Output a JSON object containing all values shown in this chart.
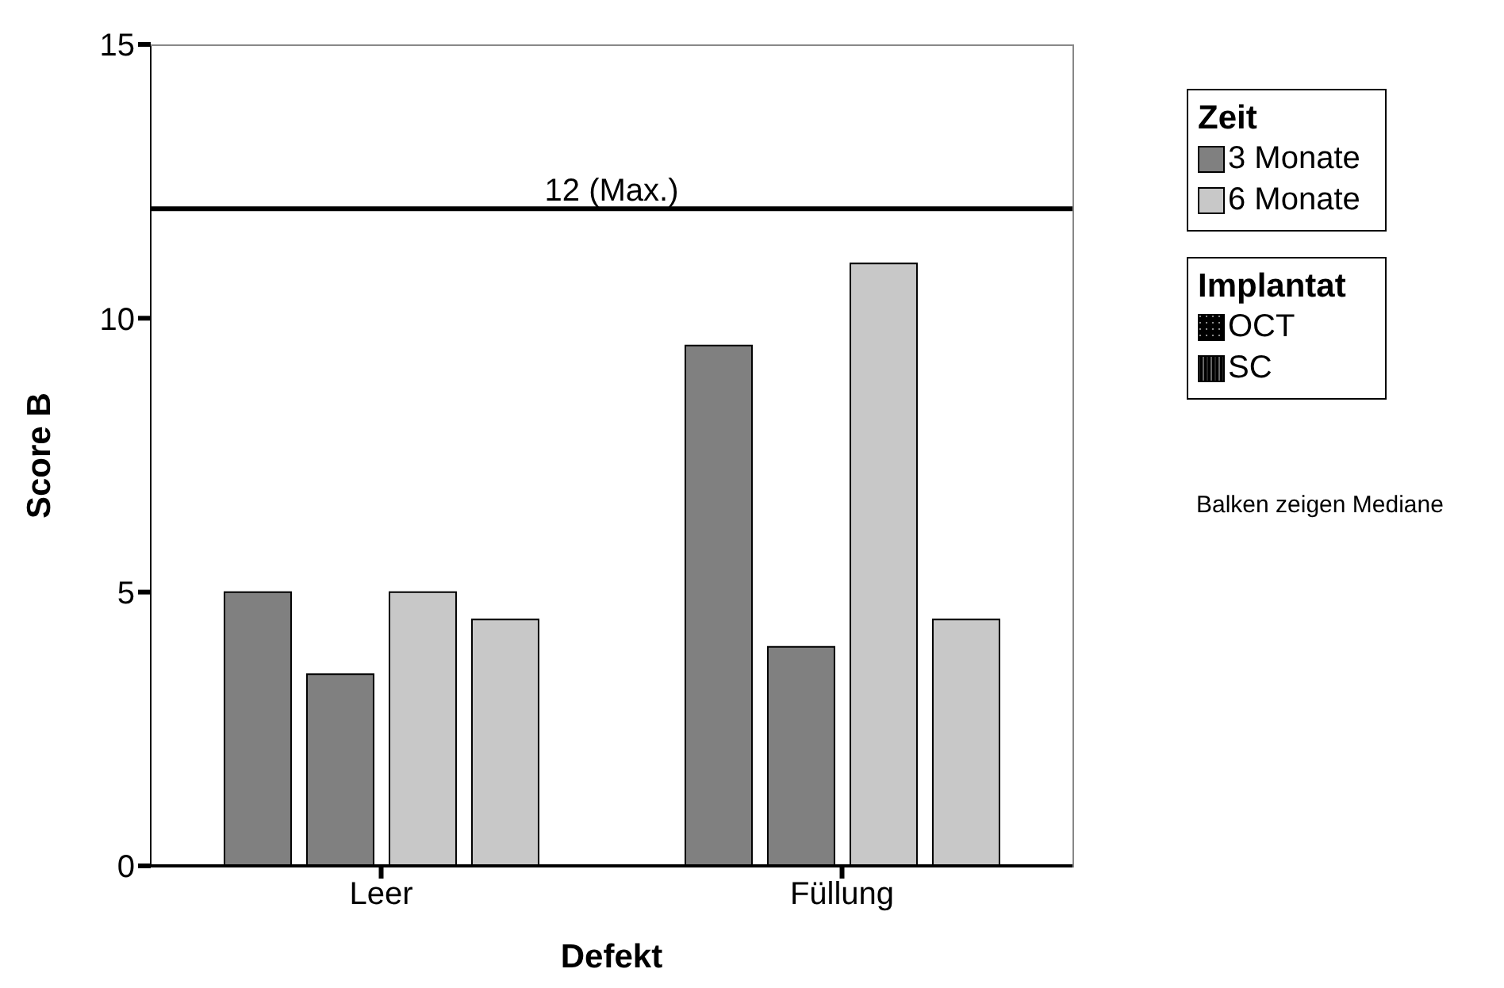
{
  "chart_data": {
    "type": "bar",
    "xlabel": "Defekt",
    "ylabel": "Score B",
    "categories": [
      "Leer",
      "Füllung"
    ],
    "series": [
      {
        "color": "#808080",
        "values": [
          5,
          9.5
        ]
      },
      {
        "color": "#808080",
        "values": [
          3.5,
          4
        ]
      },
      {
        "color": "#c8c8c8",
        "values": [
          5,
          11
        ]
      },
      {
        "color": "#c8c8c8",
        "values": [
          4.5,
          4.5
        ]
      }
    ],
    "ylim": [
      0,
      15
    ],
    "yticks": [
      0,
      5,
      10,
      15
    ],
    "legend": "right",
    "ref_lines": [
      {
        "axis": "y",
        "value": 12,
        "label": "12 (Max.)",
        "color": "#000000"
      }
    ],
    "annotations": [
      "Zeit",
      "3 Monate",
      "6 Monate",
      "Implantat",
      "OCT",
      "SC",
      "Balken zeigen Mediane"
    ]
  }
}
